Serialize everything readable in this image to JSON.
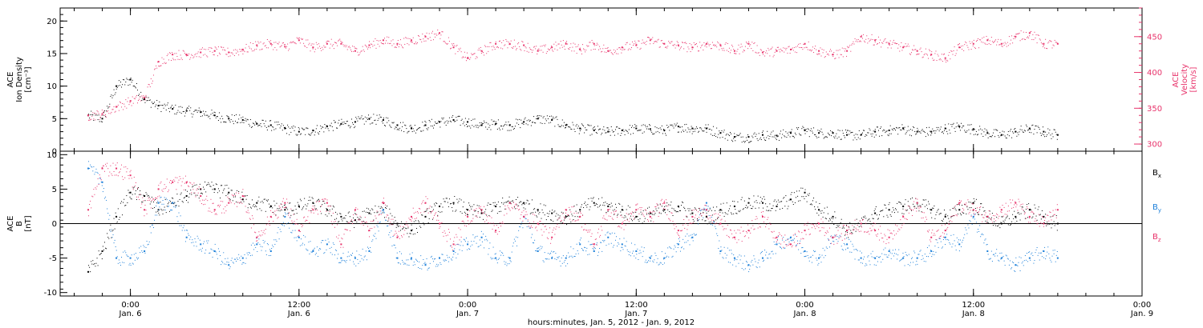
{
  "chart_data": [
    {
      "type": "scatter",
      "panel": "top",
      "left_axis_label": [
        "ACE",
        "Ion Density",
        "[cm⁻³]"
      ],
      "right_axis_label": [
        "ACE",
        "Velocity",
        "[km/s]"
      ],
      "ylim_left": [
        0,
        22
      ],
      "yticks_left": [
        0,
        5,
        10,
        15,
        20
      ],
      "ylim_right": [
        290,
        490
      ],
      "yticks_right": [
        300,
        350,
        400,
        450
      ],
      "right_axis_color": "#e8336b",
      "series": [
        {
          "axis": "left",
          "color": "#000000",
          "hours": [
            -3,
            -2,
            -1,
            0,
            1,
            2,
            3,
            4,
            5,
            6,
            7,
            8,
            9,
            10,
            11,
            12,
            13,
            14,
            15,
            16,
            17,
            18,
            19,
            20,
            21,
            22,
            23,
            24,
            25,
            26,
            27,
            28,
            29,
            30,
            31,
            32,
            33,
            34,
            35,
            36,
            37,
            38,
            39,
            40,
            41,
            42,
            43,
            44,
            45,
            46,
            47,
            48,
            49,
            50,
            51,
            52,
            53,
            54,
            55,
            56,
            57,
            58,
            59,
            60,
            61,
            62,
            63,
            64,
            65,
            66
          ],
          "values": [
            5.5,
            5,
            10,
            11,
            8,
            7,
            6.5,
            6.2,
            6,
            5.5,
            5,
            4.8,
            4.2,
            4,
            3.5,
            3,
            3.2,
            3.8,
            4.2,
            4.5,
            5,
            4.8,
            4,
            3.5,
            4,
            4.5,
            4.8,
            4.5,
            4,
            4.2,
            4,
            4.5,
            5,
            4.8,
            4,
            3.5,
            3.2,
            3,
            3.2,
            3.5,
            3.4,
            3.2,
            3.8,
            3.5,
            3.5,
            2.8,
            2.2,
            2.2,
            2.5,
            2.4,
            2.8,
            3.2,
            2.8,
            2.8,
            2.5,
            2.5,
            3,
            3.2,
            3.5,
            3,
            3,
            3.5,
            3.8,
            3.4,
            2.8,
            2.5,
            3,
            3.5,
            3,
            2.5
          ]
        },
        {
          "axis": "right",
          "color": "#e8336b",
          "hours": [
            -3,
            -2,
            -1,
            0,
            1,
            2,
            3,
            4,
            5,
            6,
            7,
            8,
            9,
            10,
            11,
            12,
            13,
            14,
            15,
            16,
            17,
            18,
            19,
            20,
            21,
            22,
            23,
            24,
            25,
            26,
            27,
            28,
            29,
            30,
            31,
            32,
            33,
            34,
            35,
            36,
            37,
            38,
            39,
            40,
            41,
            42,
            43,
            44,
            45,
            46,
            47,
            48,
            49,
            50,
            51,
            52,
            53,
            54,
            55,
            56,
            57,
            58,
            59,
            60,
            61,
            62,
            63,
            64,
            65,
            66
          ],
          "values": [
            340,
            342,
            352,
            360,
            365,
            415,
            425,
            425,
            428,
            430,
            428,
            432,
            438,
            440,
            436,
            445,
            435,
            440,
            440,
            430,
            438,
            445,
            440,
            445,
            450,
            455,
            435,
            420,
            430,
            440,
            440,
            438,
            430,
            435,
            440,
            432,
            440,
            430,
            435,
            438,
            445,
            440,
            438,
            435,
            440,
            438,
            430,
            440,
            428,
            430,
            432,
            440,
            430,
            425,
            430,
            450,
            445,
            440,
            435,
            430,
            425,
            420,
            435,
            440,
            445,
            440,
            450,
            455,
            440,
            440
          ]
        }
      ]
    },
    {
      "type": "scatter",
      "panel": "bottom",
      "left_axis_label": [
        "ACE",
        "B",
        "[nT]"
      ],
      "ylim": [
        -10.5,
        10.5
      ],
      "yticks": [
        -10,
        -5,
        0,
        5,
        10
      ],
      "zero_line": true,
      "legend_placement": "right",
      "series": [
        {
          "name": "Bx",
          "label_main": "B",
          "label_sub": "x",
          "color": "#000000",
          "hours": [
            -3,
            -2,
            -1,
            0,
            1,
            2,
            3,
            4,
            5,
            6,
            7,
            8,
            9,
            10,
            11,
            12,
            13,
            14,
            15,
            16,
            17,
            18,
            19,
            20,
            21,
            22,
            23,
            24,
            25,
            26,
            27,
            28,
            29,
            30,
            31,
            32,
            33,
            34,
            35,
            36,
            37,
            38,
            39,
            40,
            41,
            42,
            43,
            44,
            45,
            46,
            47,
            48,
            49,
            50,
            51,
            52,
            53,
            54,
            55,
            56,
            57,
            58,
            59,
            60,
            61,
            62,
            63,
            64,
            65,
            66
          ],
          "values": [
            -7,
            -4,
            1,
            4.5,
            4,
            2,
            3,
            4,
            5,
            5,
            4.5,
            3.5,
            3,
            2.5,
            2,
            2.5,
            3,
            2,
            1,
            0.5,
            1.5,
            2,
            0,
            -1,
            1,
            2.5,
            3,
            2,
            1.5,
            2.5,
            3,
            3,
            2,
            1.5,
            1,
            2,
            3,
            2.5,
            2,
            1,
            1.5,
            2,
            2.5,
            1.5,
            1,
            2,
            2.5,
            3,
            3,
            2.5,
            3.5,
            4.5,
            2,
            1,
            -1,
            0,
            1.5,
            2,
            2.5,
            3,
            2,
            1,
            2,
            3,
            1,
            0,
            1,
            2,
            1,
            0
          ]
        },
        {
          "name": "By",
          "label_main": "B",
          "label_sub": "y",
          "color": "#1b7fd9",
          "hours": [
            -3,
            -2,
            -1,
            0,
            1,
            2,
            3,
            4,
            5,
            6,
            7,
            8,
            9,
            10,
            11,
            12,
            13,
            14,
            15,
            16,
            17,
            18,
            19,
            20,
            21,
            22,
            23,
            24,
            25,
            26,
            27,
            28,
            29,
            30,
            31,
            32,
            33,
            34,
            35,
            36,
            37,
            38,
            39,
            40,
            41,
            42,
            43,
            44,
            45,
            46,
            47,
            48,
            49,
            50,
            51,
            52,
            53,
            54,
            55,
            56,
            57,
            58,
            59,
            60,
            61,
            62,
            63,
            64,
            65,
            66
          ],
          "values": [
            8,
            6,
            -5,
            -5,
            -4,
            3,
            3,
            -2,
            -3,
            -4,
            -6,
            -5,
            -3,
            -4,
            1,
            -2,
            -4,
            -3,
            -5,
            -5,
            -4,
            2,
            -5,
            -5,
            -6,
            -5,
            -4,
            -3,
            -2,
            -5,
            -5,
            1,
            -4,
            -5,
            -5,
            -3,
            -4,
            -2,
            -3,
            -4,
            -5,
            -5,
            -3,
            -2,
            3,
            -4,
            -5,
            -6,
            -5,
            -3,
            -2,
            -4,
            -5,
            -2,
            -3,
            -5,
            -5,
            -4,
            -5,
            -5,
            -4,
            -2,
            -3,
            1,
            -4,
            -5,
            -6,
            -5,
            -4,
            -5
          ]
        },
        {
          "name": "Bz",
          "label_main": "B",
          "label_sub": "z",
          "color": "#e8336b",
          "hours": [
            -3,
            -2,
            -1,
            0,
            1,
            2,
            3,
            4,
            5,
            6,
            7,
            8,
            9,
            10,
            11,
            12,
            13,
            14,
            15,
            16,
            17,
            18,
            19,
            20,
            21,
            22,
            23,
            24,
            25,
            26,
            27,
            28,
            29,
            30,
            31,
            32,
            33,
            34,
            35,
            36,
            37,
            38,
            39,
            40,
            41,
            42,
            43,
            44,
            45,
            46,
            47,
            48,
            49,
            50,
            51,
            52,
            53,
            54,
            55,
            56,
            57,
            58,
            59,
            60,
            61,
            62,
            63,
            64,
            65,
            66
          ],
          "values": [
            2,
            8,
            8,
            7,
            2,
            5,
            6,
            6,
            4,
            2,
            3,
            4,
            -2,
            1,
            3,
            -1,
            2,
            3,
            -3,
            2,
            -1,
            3,
            -2,
            1,
            3,
            0,
            -3,
            1,
            2,
            -1,
            3,
            1,
            0,
            -2,
            2,
            1,
            -3,
            2,
            0,
            2,
            1,
            3,
            -1,
            1,
            2,
            0,
            -2,
            -1,
            1,
            -2,
            -3,
            -1,
            0,
            -2,
            -1,
            0,
            -1,
            -2,
            1,
            3,
            -2,
            -1,
            3,
            2,
            1,
            2,
            3,
            1,
            0,
            2
          ]
        }
      ]
    }
  ],
  "x_axis": {
    "xlim_hours": [
      -5,
      72
    ],
    "data_end_hour": 66,
    "major_ticks_hours": [
      0,
      12,
      24,
      36,
      48,
      60,
      72
    ],
    "minor_tick_step_hours": 2,
    "tick_time_labels": [
      "0:00",
      "12:00",
      "0:00",
      "12:00",
      "0:00",
      "12:00",
      "0:00"
    ],
    "tick_date_labels": [
      "Jan. 6",
      "Jan. 6",
      "Jan. 7",
      "Jan. 7",
      "Jan. 8",
      "Jan. 8",
      "Jan. 9"
    ],
    "xlabel": "hours:minutes, Jan. 5, 2012 - Jan. 9, 2012"
  }
}
